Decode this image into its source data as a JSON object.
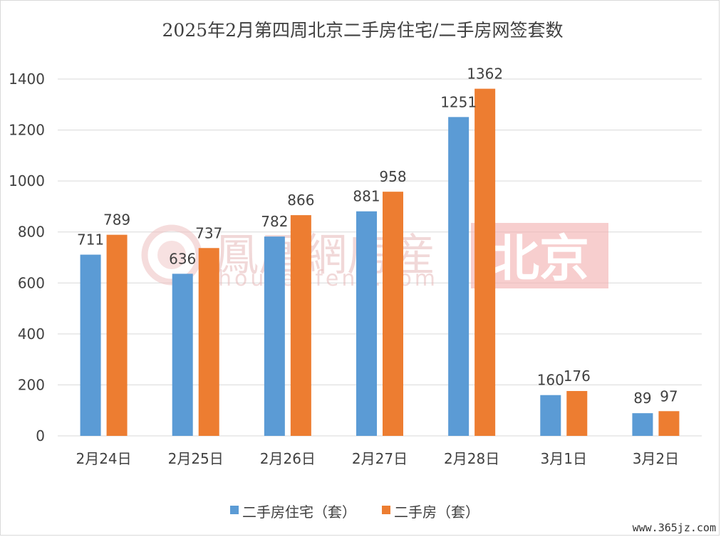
{
  "chart_data": {
    "type": "bar",
    "title": "2025年2月第四周北京二手房住宅/二手房网签套数",
    "categories": [
      "2月24日",
      "2月25日",
      "2月26日",
      "2月27日",
      "2月28日",
      "3月1日",
      "3月2日"
    ],
    "series": [
      {
        "name": "二手房住宅（套）",
        "color": "#5b9bd5",
        "values": [
          711,
          636,
          782,
          881,
          1251,
          160,
          89
        ]
      },
      {
        "name": "二手房（套）",
        "color": "#ed7d31",
        "values": [
          789,
          737,
          866,
          958,
          1362,
          176,
          97
        ]
      }
    ],
    "ylim": [
      0,
      1400
    ],
    "yticks": [
      0,
      200,
      400,
      600,
      800,
      1000,
      1200,
      1400
    ],
    "grid": true,
    "legend_position": "bottom",
    "xlabel": "",
    "ylabel": ""
  },
  "watermark": {
    "brand": "鳳凰網房産",
    "url": "house.ifeng.com",
    "city": "北京"
  },
  "site_label": "www.365jz.com"
}
